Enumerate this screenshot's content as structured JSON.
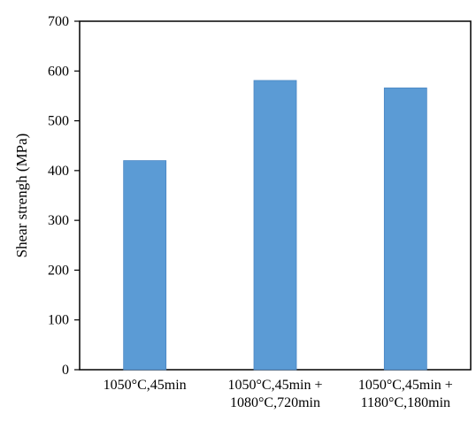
{
  "chart_data": {
    "type": "bar",
    "title": "",
    "xlabel": "",
    "ylabel": "Shear strengh (MPa)",
    "ylim": [
      0,
      700
    ],
    "yticks": [
      0,
      100,
      200,
      300,
      400,
      500,
      600,
      700
    ],
    "grid": false,
    "legend": "none",
    "categories": [
      [
        "1050°C,45min"
      ],
      [
        "1050°C,45min +",
        "1080°C,720min"
      ],
      [
        "1050°C,45min +",
        "1180°C,180min"
      ]
    ],
    "values": [
      420,
      581,
      566
    ],
    "bar_color": "#5B9BD5",
    "bar_edge_color": "#4A86C3",
    "axis_color": "#000000"
  }
}
